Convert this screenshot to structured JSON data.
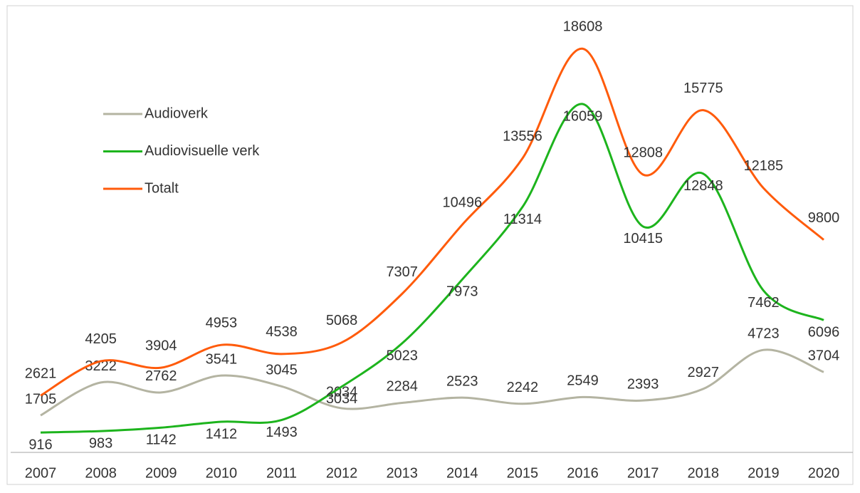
{
  "chart_data": {
    "type": "line",
    "categories": [
      "2007",
      "2008",
      "2009",
      "2010",
      "2011",
      "2012",
      "2013",
      "2014",
      "2015",
      "2016",
      "2017",
      "2018",
      "2019",
      "2020"
    ],
    "series": [
      {
        "name": "Audioverk",
        "color": "#b4b4a2",
        "values": [
          1705,
          3222,
          2762,
          3541,
          3045,
          2034,
          2284,
          2523,
          2242,
          2549,
          2393,
          2927,
          4723,
          3704
        ]
      },
      {
        "name": "Audiovisuelle verk",
        "color": "#1db41d",
        "values": [
          916,
          983,
          1142,
          1412,
          1493,
          3034,
          5023,
          7973,
          11314,
          16059,
          10415,
          12848,
          7462,
          6096
        ]
      },
      {
        "name": "Totalt",
        "color": "#ff5b0b",
        "values": [
          2621,
          4205,
          3904,
          4953,
          4538,
          5068,
          7307,
          10496,
          13556,
          18608,
          12808,
          15775,
          12185,
          9800
        ]
      }
    ],
    "ylim": [
      0,
      20000
    ],
    "smooth": true,
    "legend": "upper left"
  }
}
